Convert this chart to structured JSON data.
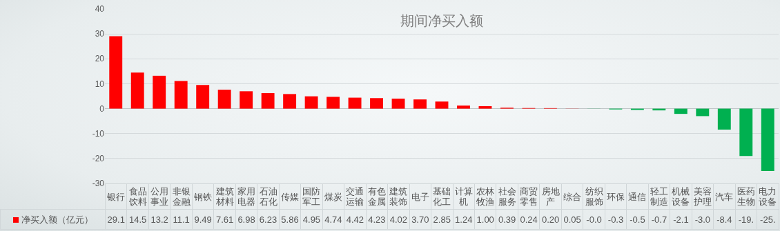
{
  "chart_data": {
    "type": "bar",
    "title": "期间净买入额",
    "categories": [
      "银行",
      "食品饮料",
      "公用事业",
      "非银金融",
      "钢铁",
      "建筑材料",
      "家用电器",
      "石油石化",
      "传媒",
      "国防军工",
      "煤炭",
      "交通运输",
      "有色金属",
      "建筑装饰",
      "电子",
      "基础化工",
      "计算机",
      "农林牧渔",
      "社会服务",
      "商贸零售",
      "房地产",
      "综合",
      "纺织服饰",
      "环保",
      "通信",
      "轻工制造",
      "机械设备",
      "美容护理",
      "汽车",
      "医药生物",
      "电力设备"
    ],
    "series": [
      {
        "name": "净买入额（亿元）",
        "color": "#ff0000",
        "colors": [
          "#ff0000",
          "#ff0000",
          "#ff0000",
          "#ff0000",
          "#ff0000",
          "#ff0000",
          "#ff0000",
          "#ff0000",
          "#ff0000",
          "#ff0000",
          "#ff0000",
          "#ff0000",
          "#ff0000",
          "#ff0000",
          "#ff0000",
          "#ff0000",
          "#ff0000",
          "#ff0000",
          "#ff0000",
          "#ff0000",
          "#ff0000",
          "#ff0000",
          "#00b050",
          "#00b050",
          "#00b050",
          "#00b050",
          "#00b050",
          "#00b050",
          "#00b050",
          "#00b050",
          "#00b050"
        ],
        "values": [
          29.1,
          14.5,
          13.2,
          11.1,
          9.49,
          7.61,
          6.98,
          6.23,
          5.86,
          4.95,
          4.74,
          4.42,
          4.23,
          4.02,
          3.7,
          2.85,
          1.24,
          1.0,
          0.39,
          0.24,
          0.2,
          0.05,
          -0.04,
          -0.3,
          -0.5,
          -0.7,
          -2.1,
          -3.0,
          -8.4,
          -19,
          -25
        ],
        "value_labels": [
          "29.1",
          "14.5",
          "13.2",
          "11.1",
          "9.49",
          "7.61",
          "6.98",
          "6.23",
          "5.86",
          "4.95",
          "4.74",
          "4.42",
          "4.23",
          "4.02",
          "3.70",
          "2.85",
          "1.24",
          "1.00",
          "0.39",
          "0.24",
          "0.20",
          "0.05",
          "-0.0",
          "-0.3",
          "-0.5",
          "-0.7",
          "-2.1",
          "-3.0",
          "-8.4",
          "-19.",
          "-25."
        ]
      }
    ],
    "ylim": [
      -30,
      40
    ],
    "yticks": [
      -30,
      -20,
      -10,
      0,
      10,
      20,
      30,
      40
    ],
    "grid": "y",
    "legend": "bottom",
    "tick_labels": "y"
  }
}
